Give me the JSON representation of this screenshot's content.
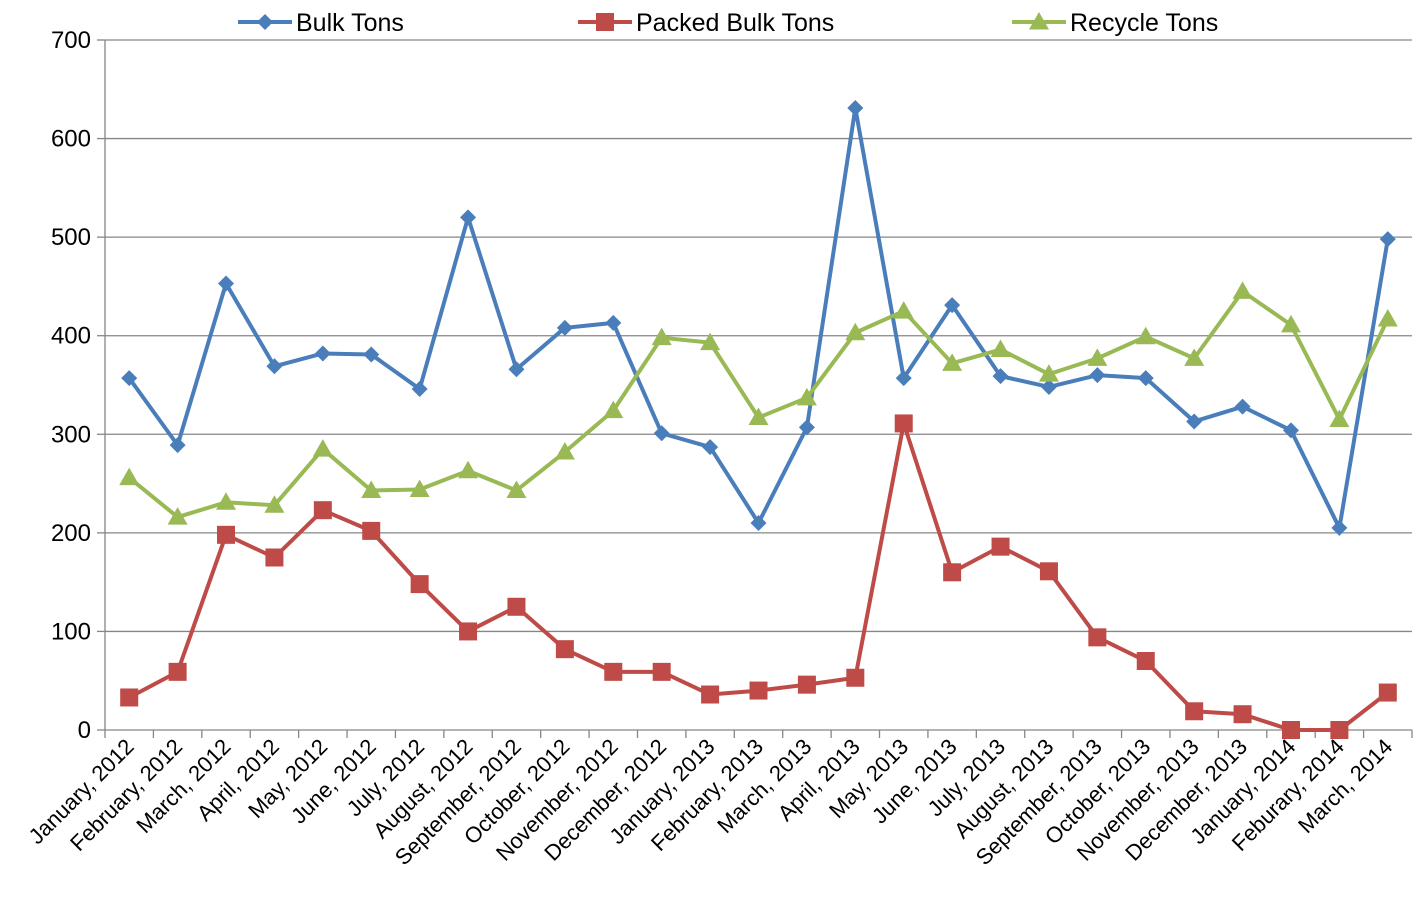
{
  "chart_data": {
    "type": "line",
    "title": "",
    "xlabel": "",
    "ylabel": "",
    "ylim": [
      0,
      700
    ],
    "yticks": [
      0,
      100,
      200,
      300,
      400,
      500,
      600,
      700
    ],
    "grid": "horizontal",
    "legend": "top",
    "categories": [
      "January, 2012",
      "February, 2012",
      "March, 2012",
      "April, 2012",
      "May, 2012",
      "June, 2012",
      "July, 2012",
      "August, 2012",
      "September, 2012",
      "October, 2012",
      "November, 2012",
      "December, 2012",
      "January, 2013",
      "February, 2013",
      "March, 2013",
      "April, 2013",
      "May, 2013",
      "June, 2013",
      "July, 2013",
      "August, 2013",
      "September, 2013",
      "October, 2013",
      "November, 2013",
      "December, 2013",
      "January, 2014",
      "Feburary, 2014",
      "March, 2014"
    ],
    "series": [
      {
        "name": "Bulk Tons",
        "color": "#4a7ebb",
        "marker": "diamond",
        "values": [
          357,
          289,
          453,
          369,
          382,
          381,
          346,
          520,
          366,
          408,
          413,
          301,
          287,
          210,
          307,
          631,
          357,
          431,
          359,
          348,
          360,
          357,
          313,
          328,
          304,
          205,
          498
        ]
      },
      {
        "name": "Packed Bulk Tons",
        "color": "#be4b48",
        "marker": "square",
        "values": [
          33,
          59,
          198,
          175,
          223,
          202,
          148,
          100,
          125,
          82,
          59,
          59,
          36,
          40,
          46,
          53,
          311,
          160,
          186,
          161,
          94,
          70,
          19,
          16,
          0,
          0,
          38
        ]
      },
      {
        "name": "Recycle Tons",
        "color": "#98b954",
        "marker": "triangle",
        "values": [
          256,
          216,
          231,
          228,
          285,
          243,
          244,
          263,
          243,
          282,
          324,
          398,
          393,
          317,
          337,
          403,
          425,
          372,
          386,
          361,
          377,
          399,
          377,
          445,
          411,
          315,
          417
        ]
      }
    ]
  }
}
